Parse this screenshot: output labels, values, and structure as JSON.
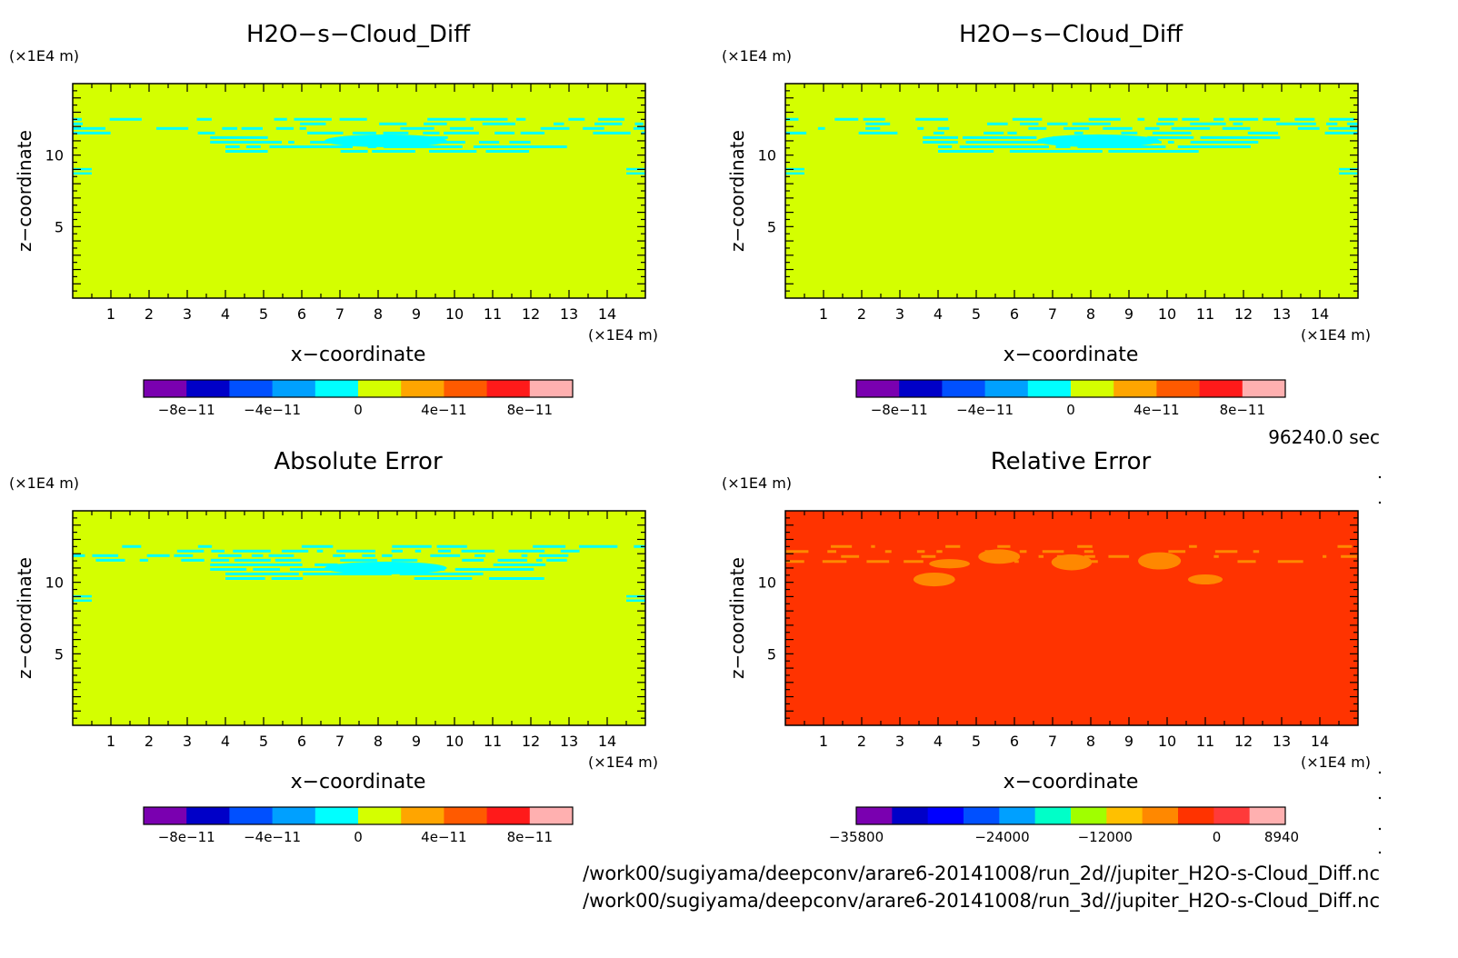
{
  "time_label": "96240.0 sec",
  "file_paths": [
    "/work00/sugiyama/deepconv/arare6-20141008/run_2d//jupiter_H2O-s-Cloud_Diff.nc",
    "/work00/sugiyama/deepconv/arare6-20141008/run_3d//jupiter_H2O-s-Cloud_Diff.nc"
  ],
  "colors": {
    "background_green": "#d4ff00",
    "cyan": "#00ffff",
    "relerr_red": "#ff3300",
    "relerr_orange": "#ff8800"
  },
  "chart_data": [
    {
      "type": "heatmap",
      "title": "H2O−s−Cloud_Diff",
      "xlabel": "x−coordinate",
      "ylabel": "z−coordinate",
      "x_unit": "(×1E4 m)",
      "y_unit": "(×1E4 m)",
      "xlim": [
        0,
        15
      ],
      "ylim": [
        0,
        15
      ],
      "xticks": [
        1,
        2,
        3,
        4,
        5,
        6,
        7,
        8,
        9,
        10,
        11,
        12,
        13,
        14
      ],
      "yticks": [
        5,
        10
      ],
      "pattern": "green",
      "colorbar": {
        "colors": [
          "#7a00b0",
          "#0000c8",
          "#0050ff",
          "#00a0ff",
          "#00ffff",
          "#d4ff00",
          "#ffa500",
          "#ff5a00",
          "#ff1a1a",
          "#ffb0b0"
        ],
        "tick_labels": [
          "−8e−11",
          "−4e−11",
          "0",
          "4e−11",
          "8e−11"
        ]
      }
    },
    {
      "type": "heatmap",
      "title": "H2O−s−Cloud_Diff",
      "xlabel": "x−coordinate",
      "ylabel": "z−coordinate",
      "x_unit": "(×1E4 m)",
      "y_unit": "(×1E4 m)",
      "xlim": [
        0,
        15
      ],
      "ylim": [
        0,
        15
      ],
      "xticks": [
        1,
        2,
        3,
        4,
        5,
        6,
        7,
        8,
        9,
        10,
        11,
        12,
        13,
        14
      ],
      "yticks": [
        5,
        10
      ],
      "pattern": "green",
      "colorbar": {
        "colors": [
          "#7a00b0",
          "#0000c8",
          "#0050ff",
          "#00a0ff",
          "#00ffff",
          "#d4ff00",
          "#ffa500",
          "#ff5a00",
          "#ff1a1a",
          "#ffb0b0"
        ],
        "tick_labels": [
          "−8e−11",
          "−4e−11",
          "0",
          "4e−11",
          "8e−11"
        ]
      }
    },
    {
      "type": "heatmap",
      "title": "Absolute Error",
      "xlabel": "x−coordinate",
      "ylabel": "z−coordinate",
      "x_unit": "(×1E4 m)",
      "y_unit": "(×1E4 m)",
      "xlim": [
        0,
        15
      ],
      "ylim": [
        0,
        15
      ],
      "xticks": [
        1,
        2,
        3,
        4,
        5,
        6,
        7,
        8,
        9,
        10,
        11,
        12,
        13,
        14
      ],
      "yticks": [
        5,
        10
      ],
      "pattern": "green",
      "colorbar": {
        "colors": [
          "#7a00b0",
          "#0000c8",
          "#0050ff",
          "#00a0ff",
          "#00ffff",
          "#d4ff00",
          "#ffa500",
          "#ff5a00",
          "#ff1a1a",
          "#ffb0b0"
        ],
        "tick_labels": [
          "−8e−11",
          "−4e−11",
          "0",
          "4e−11",
          "8e−11"
        ]
      }
    },
    {
      "type": "heatmap",
      "title": "Relative Error",
      "xlabel": "x−coordinate",
      "ylabel": "z−coordinate",
      "x_unit": "(×1E4 m)",
      "y_unit": "(×1E4 m)",
      "xlim": [
        0,
        15
      ],
      "ylim": [
        0,
        15
      ],
      "xticks": [
        1,
        2,
        3,
        4,
        5,
        6,
        7,
        8,
        9,
        10,
        11,
        12,
        13,
        14
      ],
      "yticks": [
        5,
        10
      ],
      "pattern": "red",
      "colorbar": {
        "colors": [
          "#7a00b0",
          "#0000c8",
          "#0000ff",
          "#0050ff",
          "#00a0ff",
          "#00ffc8",
          "#a0ff00",
          "#ffc000",
          "#ff8800",
          "#ff3300",
          "#ff3a3a",
          "#ffb0b0"
        ],
        "tick_labels": [
          "−35800",
          "−24000",
          "−12000",
          "0",
          "8940"
        ]
      }
    }
  ]
}
